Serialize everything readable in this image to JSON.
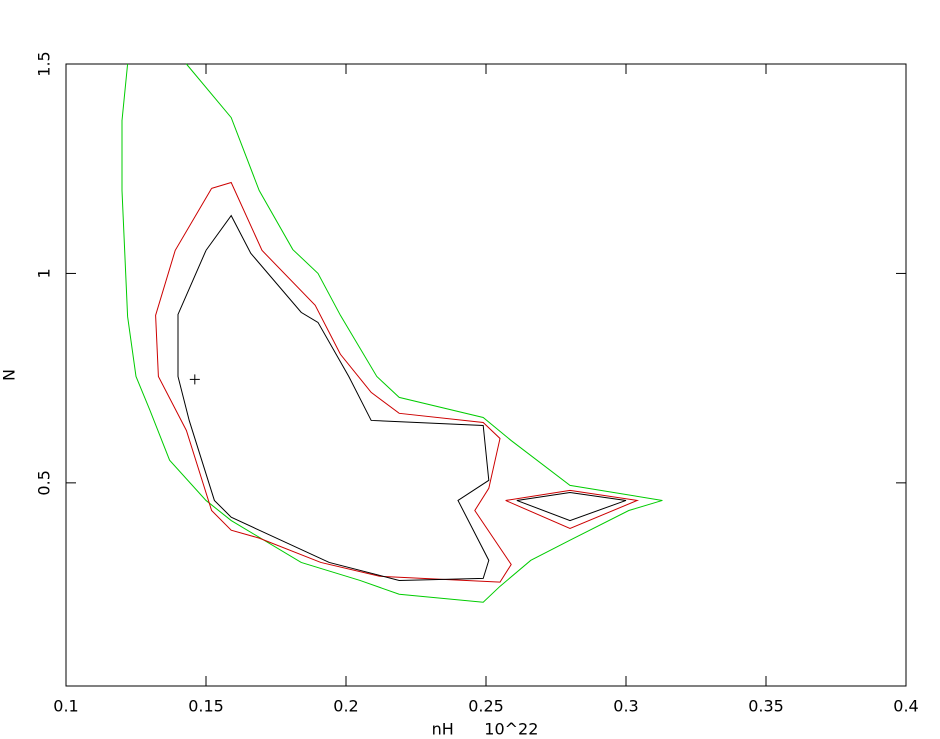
{
  "chart_data": {
    "type": "contour",
    "xlabel": "nH      10^22",
    "ylabel": "N",
    "xlim": [
      0.1,
      0.4
    ],
    "ylim": [
      0.015,
      1.5
    ],
    "xticks": [
      0.1,
      0.15,
      0.2,
      0.25,
      0.3,
      0.35,
      0.4
    ],
    "yticks": [
      0.5,
      1,
      1.5
    ],
    "best_fit": {
      "x": 0.146,
      "y": 0.747
    },
    "series": [
      {
        "color": "#00cc00",
        "x": [
          0.122,
          0.12,
          0.12,
          0.122,
          0.125,
          0.13,
          0.137,
          0.15,
          0.159,
          0.184,
          0.205,
          0.219,
          0.249,
          0.255,
          0.266,
          0.28,
          0.301,
          0.313,
          0.28,
          0.259,
          0.249,
          0.219,
          0.211,
          0.198,
          0.19,
          0.181,
          0.169,
          0.159,
          0.143
        ],
        "values": [
          1.5,
          1.365,
          1.198,
          0.897,
          0.754,
          0.673,
          0.554,
          0.458,
          0.41,
          0.31,
          0.267,
          0.234,
          0.215,
          0.253,
          0.315,
          0.363,
          0.434,
          0.458,
          0.494,
          0.601,
          0.656,
          0.704,
          0.754,
          0.9,
          1.0,
          1.057,
          1.198,
          1.372,
          1.5
        ]
      },
      {
        "color": "#cc0000",
        "x": [
          0.152,
          0.159,
          0.17,
          0.189,
          0.198,
          0.209,
          0.219,
          0.249,
          0.255,
          0.251,
          0.246,
          0.259,
          0.255,
          0.212,
          0.191,
          0.169,
          0.159,
          0.152,
          0.143,
          0.133,
          0.132,
          0.139,
          0.152,
          null,
          0.257,
          0.28,
          0.304,
          0.28,
          0.257
        ],
        "values": [
          1.203,
          1.217,
          1.055,
          0.924,
          0.807,
          0.716,
          0.666,
          0.644,
          0.606,
          0.487,
          0.434,
          0.305,
          0.263,
          0.277,
          0.31,
          0.368,
          0.387,
          0.434,
          0.625,
          0.754,
          0.9,
          1.055,
          1.203,
          null,
          0.458,
          0.482,
          0.458,
          0.391,
          0.458
        ]
      },
      {
        "color": "#000000",
        "x": [
          0.15,
          0.159,
          0.166,
          0.184,
          0.19,
          0.201,
          0.209,
          0.249,
          0.251,
          0.24,
          0.251,
          0.249,
          0.219,
          0.194,
          0.169,
          0.159,
          0.153,
          0.144,
          0.14,
          0.14,
          0.15,
          null,
          0.261,
          0.28,
          0.3,
          0.28,
          0.261
        ],
        "values": [
          1.055,
          1.138,
          1.048,
          0.907,
          0.883,
          0.754,
          0.649,
          0.637,
          0.506,
          0.458,
          0.315,
          0.272,
          0.267,
          0.31,
          0.387,
          0.418,
          0.458,
          0.649,
          0.754,
          0.902,
          1.055,
          null,
          0.458,
          0.477,
          0.458,
          0.41,
          0.458
        ]
      }
    ]
  }
}
